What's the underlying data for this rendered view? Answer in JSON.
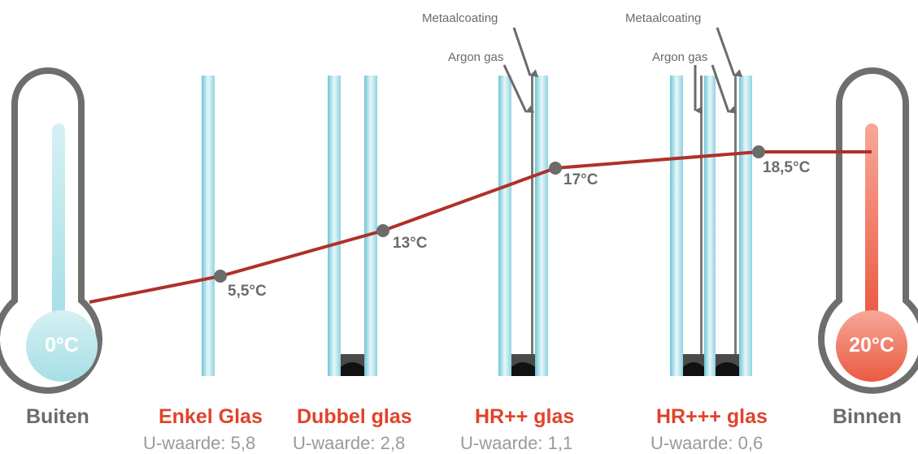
{
  "colors": {
    "accent": "#e0432a",
    "line": "#b0302a",
    "grey_text": "#6b6b6b",
    "uvalue_text": "#9a9a9a",
    "glass": "#8fd3df",
    "cold": "#a6dfe6",
    "warm": "#ee6e58"
  },
  "outside": {
    "label": "Buiten",
    "temperature": "0°C"
  },
  "inside": {
    "label": "Binnen",
    "temperature": "20°C"
  },
  "glazing": [
    {
      "name": "Enkel Glas",
      "u_value": "U-waarde: 5,8",
      "surface_temp": "5,5°C"
    },
    {
      "name": "Dubbel glas",
      "u_value": "U-waarde: 2,8",
      "surface_temp": "13°C"
    },
    {
      "name": "HR++ glas",
      "u_value": "U-waarde: 1,1",
      "surface_temp": "17°C",
      "callouts": [
        "Metaalcoating",
        "Argon gas"
      ]
    },
    {
      "name": "HR+++ glas",
      "u_value": "U-waarde: 0,6",
      "surface_temp": "18,5°C",
      "callouts": [
        "Metaalcoating",
        "Argon gas"
      ]
    }
  ]
}
